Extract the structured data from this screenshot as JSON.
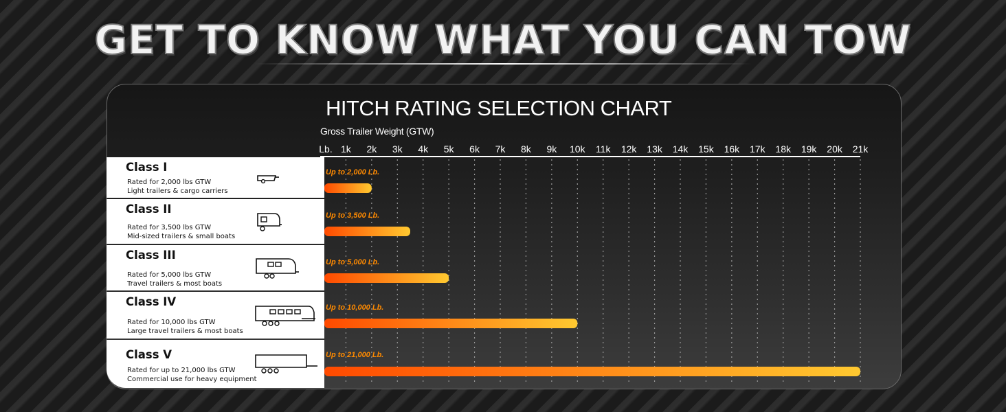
{
  "headline": "GET TO KNOW WHAT YOU CAN TOW",
  "chart_data": {
    "type": "bar",
    "orientation": "horizontal",
    "title": "HITCH RATING SELECTION CHART",
    "xlabel": "Gross Trailer Weight (GTW)",
    "xlim": [
      0,
      21000
    ],
    "x_ticks": [
      "Lb.",
      "1k",
      "2k",
      "3k",
      "4k",
      "5k",
      "6k",
      "7k",
      "8k",
      "9k",
      "10k",
      "11k",
      "12k",
      "13k",
      "14k",
      "15k",
      "16k",
      "17k",
      "18k",
      "19k",
      "20k",
      "21k"
    ],
    "grid": "vertical dotted",
    "colors": {
      "bar_start": "#ff4a00",
      "bar_end": "#ffc930",
      "label": "#ff8a00"
    },
    "categories": [
      "Class I",
      "Class II",
      "Class III",
      "Class IV",
      "Class V"
    ],
    "values": [
      2000,
      3500,
      5000,
      10000,
      21000
    ],
    "bar_labels": [
      "Up to 2,000 Lb.",
      "Up to 3,500 Lb.",
      "Up to 5,000 Lb.",
      "Up to 10,000 Lb.",
      "Up to 21,000 Lb."
    ]
  },
  "classes": [
    {
      "name": "Class I",
      "rating": "Rated for 2,000 lbs GTW",
      "use": "Light trailers & cargo carriers",
      "icon": "cargo-carrier-icon"
    },
    {
      "name": "Class II",
      "rating": "Rated for 3,500 lbs GTW",
      "use": "Mid-sized trailers & small boats",
      "icon": "small-camper-icon"
    },
    {
      "name": "Class III",
      "rating": "Rated for 5,000 lbs GTW",
      "use": "Travel trailers & most boats",
      "icon": "travel-trailer-icon"
    },
    {
      "name": "Class IV",
      "rating": "Rated for 10,000 lbs GTW",
      "use": "Large travel trailers & most boats",
      "icon": "large-travel-trailer-icon"
    },
    {
      "name": "Class V",
      "rating": "Rated for up to 21,000 lbs GTW",
      "use": "Commercial use for heavy equipment",
      "icon": "heavy-equipment-trailer-icon"
    }
  ]
}
